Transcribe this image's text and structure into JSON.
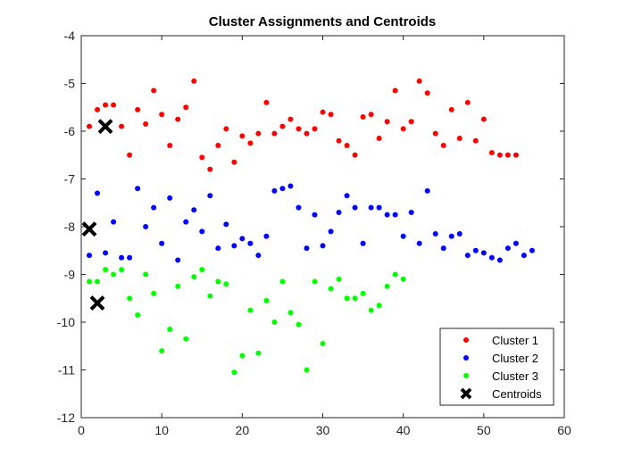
{
  "chart_data": {
    "type": "scatter",
    "title": "Cluster Assignments and Centroids",
    "xlabel": "",
    "ylabel": "",
    "xlim": [
      0,
      60
    ],
    "ylim": [
      -12,
      -4
    ],
    "xticks": [
      0,
      10,
      20,
      30,
      40,
      50,
      60
    ],
    "yticks": [
      -12,
      -11,
      -10,
      -9,
      -8,
      -7,
      -6,
      -5,
      -4
    ],
    "grid": false,
    "legend_position": "bottom-right",
    "series": [
      {
        "name": "Cluster 1",
        "color": "#ff0000",
        "marker": "dot",
        "points": [
          [
            1,
            -5.9
          ],
          [
            2,
            -5.55
          ],
          [
            3,
            -5.45
          ],
          [
            4,
            -5.45
          ],
          [
            5,
            -5.9
          ],
          [
            6,
            -6.5
          ],
          [
            7,
            -5.55
          ],
          [
            8,
            -5.85
          ],
          [
            9,
            -5.15
          ],
          [
            10,
            -5.65
          ],
          [
            11,
            -6.3
          ],
          [
            12,
            -5.75
          ],
          [
            13,
            -5.5
          ],
          [
            14,
            -4.95
          ],
          [
            15,
            -6.55
          ],
          [
            16,
            -6.8
          ],
          [
            17,
            -6.3
          ],
          [
            18,
            -5.95
          ],
          [
            19,
            -6.65
          ],
          [
            20,
            -6.1
          ],
          [
            21,
            -6.25
          ],
          [
            22,
            -6.05
          ],
          [
            23,
            -5.4
          ],
          [
            24,
            -6.05
          ],
          [
            25,
            -5.9
          ],
          [
            26,
            -5.75
          ],
          [
            27,
            -5.95
          ],
          [
            28,
            -6.05
          ],
          [
            29,
            -5.95
          ],
          [
            30,
            -5.6
          ],
          [
            31,
            -5.65
          ],
          [
            32,
            -6.2
          ],
          [
            33,
            -6.3
          ],
          [
            34,
            -6.5
          ],
          [
            35,
            -5.7
          ],
          [
            36,
            -5.65
          ],
          [
            37,
            -6.15
          ],
          [
            38,
            -5.8
          ],
          [
            39,
            -5.15
          ],
          [
            40,
            -5.95
          ],
          [
            41,
            -5.8
          ],
          [
            42,
            -4.95
          ],
          [
            43,
            -5.2
          ],
          [
            44,
            -6.05
          ],
          [
            45,
            -6.3
          ],
          [
            46,
            -5.55
          ],
          [
            47,
            -6.15
          ],
          [
            48,
            -5.4
          ],
          [
            49,
            -6.2
          ],
          [
            50,
            -5.75
          ],
          [
            51,
            -6.45
          ],
          [
            52,
            -6.5
          ],
          [
            53,
            -6.5
          ],
          [
            54,
            -6.5
          ]
        ]
      },
      {
        "name": "Cluster 2",
        "color": "#0000ff",
        "marker": "dot",
        "points": [
          [
            1,
            -8.6
          ],
          [
            2,
            -7.3
          ],
          [
            3,
            -8.55
          ],
          [
            4,
            -7.9
          ],
          [
            5,
            -8.65
          ],
          [
            6,
            -8.65
          ],
          [
            7,
            -7.2
          ],
          [
            8,
            -8.0
          ],
          [
            9,
            -7.6
          ],
          [
            10,
            -8.35
          ],
          [
            11,
            -7.4
          ],
          [
            12,
            -8.7
          ],
          [
            13,
            -7.9
          ],
          [
            14,
            -7.65
          ],
          [
            15,
            -8.1
          ],
          [
            16,
            -7.35
          ],
          [
            17,
            -8.45
          ],
          [
            18,
            -7.95
          ],
          [
            19,
            -8.4
          ],
          [
            20,
            -8.25
          ],
          [
            21,
            -8.35
          ],
          [
            22,
            -8.6
          ],
          [
            23,
            -8.2
          ],
          [
            24,
            -7.25
          ],
          [
            25,
            -7.2
          ],
          [
            26,
            -7.15
          ],
          [
            27,
            -7.6
          ],
          [
            28,
            -8.45
          ],
          [
            29,
            -7.75
          ],
          [
            30,
            -8.4
          ],
          [
            31,
            -8.1
          ],
          [
            32,
            -7.7
          ],
          [
            33,
            -7.35
          ],
          [
            34,
            -7.6
          ],
          [
            35,
            -8.35
          ],
          [
            36,
            -7.6
          ],
          [
            37,
            -7.6
          ],
          [
            38,
            -7.75
          ],
          [
            39,
            -7.75
          ],
          [
            40,
            -8.2
          ],
          [
            41,
            -7.7
          ],
          [
            42,
            -8.35
          ],
          [
            43,
            -7.25
          ],
          [
            44,
            -8.15
          ],
          [
            45,
            -8.45
          ],
          [
            46,
            -8.2
          ],
          [
            47,
            -8.15
          ],
          [
            48,
            -8.6
          ],
          [
            49,
            -8.5
          ],
          [
            50,
            -8.55
          ],
          [
            51,
            -8.65
          ],
          [
            52,
            -8.7
          ],
          [
            53,
            -8.45
          ],
          [
            54,
            -8.35
          ],
          [
            55,
            -8.6
          ],
          [
            56,
            -8.5
          ]
        ]
      },
      {
        "name": "Cluster 3",
        "color": "#00ff00",
        "marker": "dot",
        "points": [
          [
            1,
            -9.15
          ],
          [
            2,
            -9.15
          ],
          [
            3,
            -8.9
          ],
          [
            4,
            -9.0
          ],
          [
            5,
            -8.9
          ],
          [
            6,
            -9.5
          ],
          [
            7,
            -9.85
          ],
          [
            8,
            -9.0
          ],
          [
            9,
            -9.4
          ],
          [
            10,
            -10.6
          ],
          [
            11,
            -10.15
          ],
          [
            12,
            -9.25
          ],
          [
            13,
            -10.35
          ],
          [
            14,
            -9.05
          ],
          [
            15,
            -8.9
          ],
          [
            16,
            -9.45
          ],
          [
            17,
            -9.15
          ],
          [
            18,
            -9.2
          ],
          [
            19,
            -11.05
          ],
          [
            20,
            -10.7
          ],
          [
            21,
            -9.75
          ],
          [
            22,
            -10.65
          ],
          [
            23,
            -9.55
          ],
          [
            24,
            -10.0
          ],
          [
            25,
            -9.15
          ],
          [
            26,
            -9.8
          ],
          [
            27,
            -10.05
          ],
          [
            28,
            -11.0
          ],
          [
            29,
            -9.15
          ],
          [
            30,
            -10.45
          ],
          [
            31,
            -9.3
          ],
          [
            32,
            -9.1
          ],
          [
            33,
            -9.5
          ],
          [
            34,
            -9.5
          ],
          [
            35,
            -9.4
          ],
          [
            36,
            -9.75
          ],
          [
            37,
            -9.65
          ],
          [
            38,
            -9.25
          ],
          [
            39,
            -9.0
          ],
          [
            40,
            -9.1
          ]
        ]
      },
      {
        "name": "Centroids",
        "color": "#000000",
        "marker": "x",
        "points": [
          [
            3,
            -5.9
          ],
          [
            1,
            -8.05
          ],
          [
            2,
            -9.6
          ]
        ]
      }
    ]
  }
}
